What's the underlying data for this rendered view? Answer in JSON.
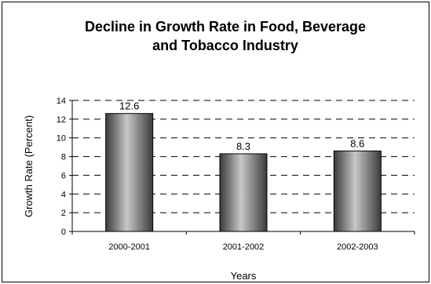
{
  "chart_data": {
    "type": "bar",
    "title_lines": [
      "Decline in Growth Rate in Food, Beverage",
      "and Tobacco Industry"
    ],
    "xlabel": "Years",
    "ylabel": "Growth Rate (Percent)",
    "categories": [
      "2000-2001",
      "2001-2002",
      "2002-2003"
    ],
    "values": [
      12.6,
      8.3,
      8.6
    ],
    "data_labels": [
      "12.6",
      "8.3",
      "8.6"
    ],
    "ylim": [
      0,
      14
    ],
    "yticks": [
      0,
      2,
      4,
      6,
      8,
      10,
      12,
      14
    ],
    "grid": true,
    "grid_style": "dashed",
    "legend": "none",
    "bar_color_dark": "#3a3a3a",
    "bar_color_light": "#c8c8c8"
  }
}
